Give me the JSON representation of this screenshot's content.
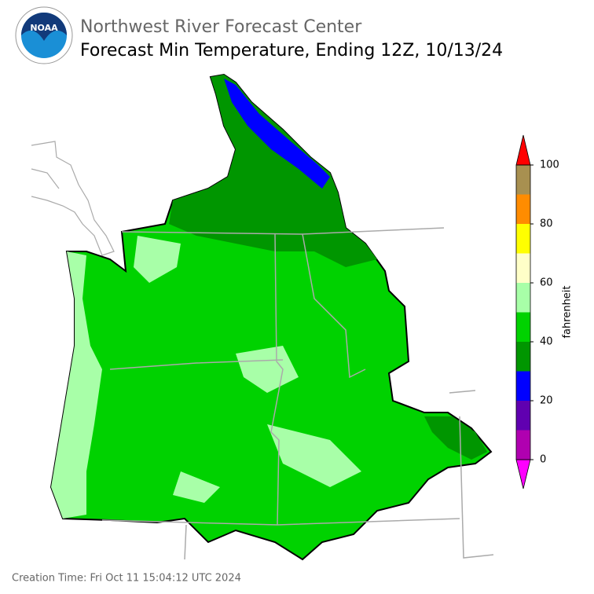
{
  "header": {
    "agency": "Northwest River Forecast Center",
    "title": "Forecast Min Temperature, Ending 12Z, 10/13/24"
  },
  "logo": {
    "text": "NOAA"
  },
  "colorbar": {
    "label": "fahrenheit",
    "levels": [
      0,
      10,
      20,
      30,
      40,
      50,
      60,
      70,
      80,
      90,
      100
    ],
    "colors": [
      "#b000b0",
      "#6000b0",
      "#0000ff",
      "#009600",
      "#00d200",
      "#a8ffa8",
      "#ffffc8",
      "#ffff00",
      "#ff8c00",
      "#a89050"
    ],
    "under_color": "#ff00ff",
    "over_color": "#ff0000",
    "ticks": [
      0,
      20,
      40,
      60,
      80,
      100
    ]
  },
  "footer": {
    "creation_time": "Creation Time: Fri Oct 11 15:04:12 UTC 2024"
  }
}
